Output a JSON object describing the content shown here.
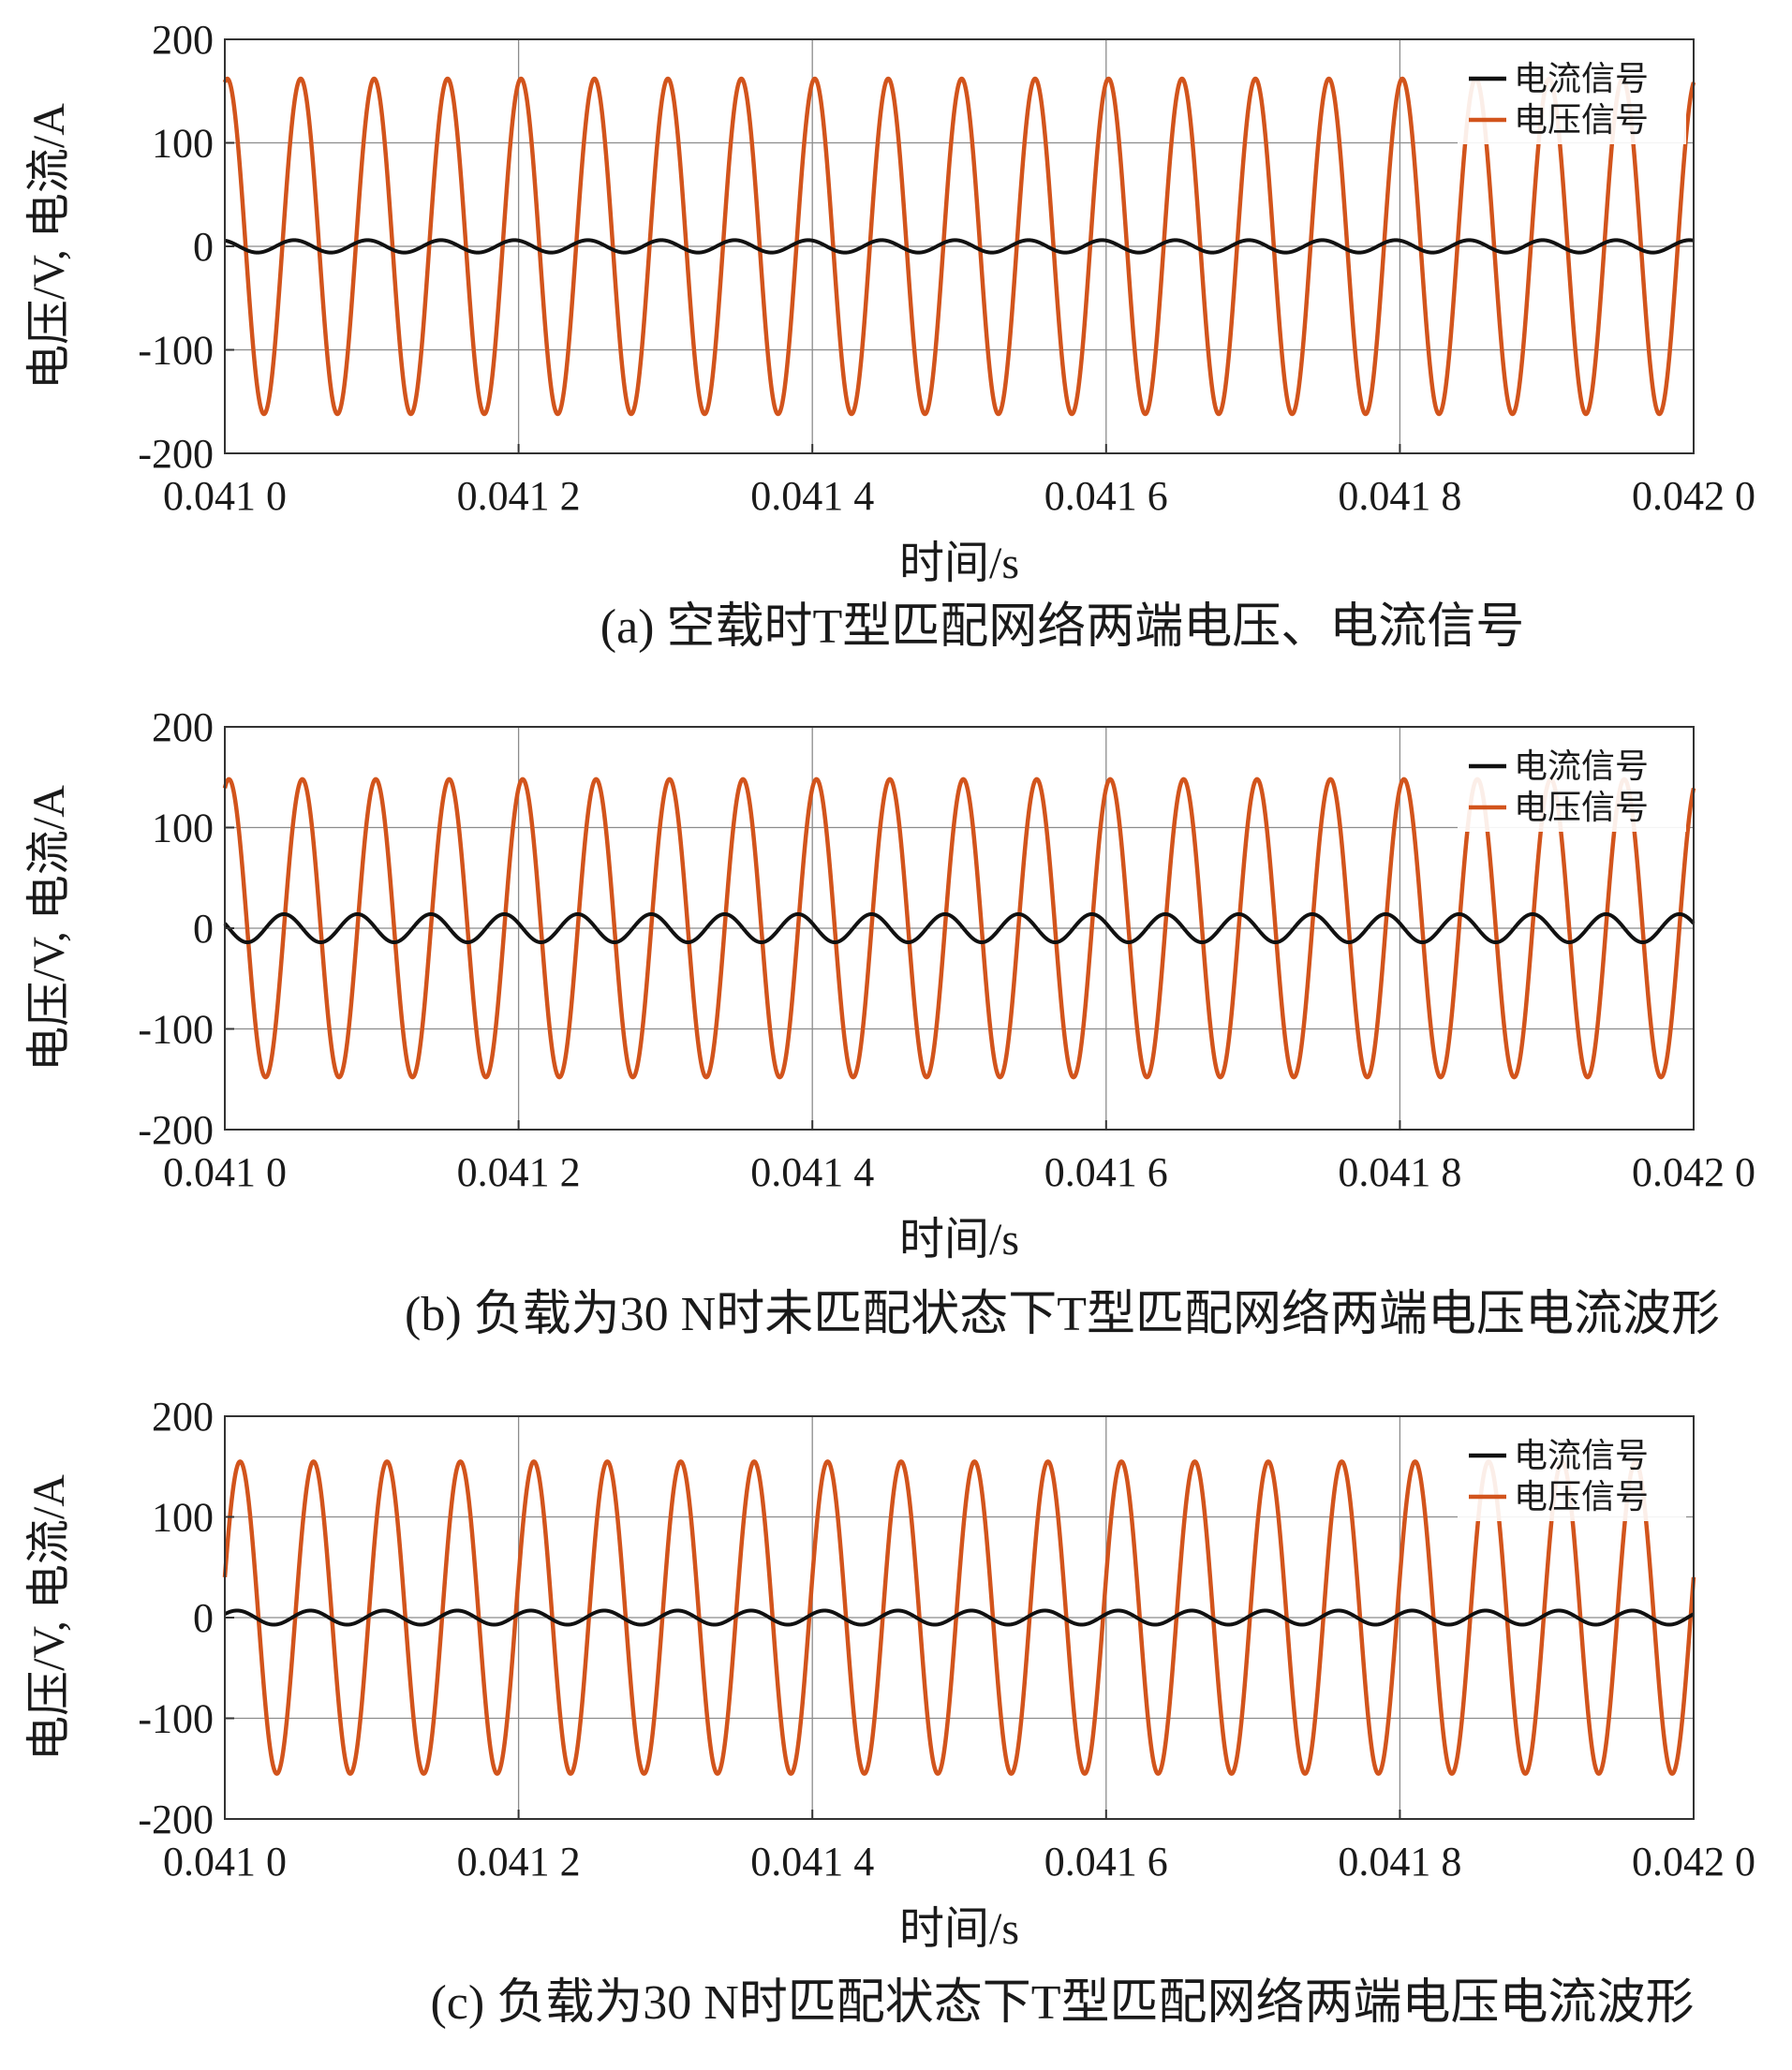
{
  "colors": {
    "current": "#111111",
    "voltage": "#d2541c",
    "grid": "#8c8c8c",
    "axes": "#333333",
    "background": "#ffffff"
  },
  "chart_data": [
    {
      "type": "line",
      "caption": "(a) 空载时T型匹配网络两端电压、电流信号",
      "xlabel": "时间/s",
      "ylabel": "电压/V, 电流/A",
      "xlim": [
        0.041,
        0.042
      ],
      "ylim": [
        -200,
        200
      ],
      "x_ticks": [
        0.041,
        0.0412,
        0.0414,
        0.0416,
        0.0418,
        0.042
      ],
      "x_tick_labels": [
        "0.041 0",
        "0.041 2",
        "0.041 4",
        "0.041 6",
        "0.041 8",
        "0.042 0"
      ],
      "y_ticks": [
        200,
        100,
        0,
        -100,
        -200
      ],
      "y_tick_labels": [
        "200",
        "100",
        "0",
        "-100",
        "-200"
      ],
      "grid": true,
      "legend_position": "top-right",
      "series": [
        {
          "name": "电流信号",
          "waveform": "sine",
          "amplitude": 6,
          "frequency_hz": 20000,
          "phase_deg": 110
        },
        {
          "name": "电压信号",
          "waveform": "sine",
          "amplitude": 162,
          "frequency_hz": 20000,
          "phase_deg": 78
        }
      ]
    },
    {
      "type": "line",
      "caption": "(b) 负载为30 N时未匹配状态下T型匹配网络两端电压电流波形",
      "xlabel": "时间/s",
      "ylabel": "电压/V, 电流/A",
      "xlim": [
        0.041,
        0.042
      ],
      "ylim": [
        -200,
        200
      ],
      "x_ticks": [
        0.041,
        0.0412,
        0.0414,
        0.0416,
        0.0418,
        0.042
      ],
      "x_tick_labels": [
        "0.041 0",
        "0.041 2",
        "0.041 4",
        "0.041 6",
        "0.041 8",
        "0.042 0"
      ],
      "y_ticks": [
        200,
        100,
        0,
        -100,
        -200
      ],
      "y_tick_labels": [
        "200",
        "100",
        "0",
        "-100",
        "-200"
      ],
      "grid": true,
      "legend_position": "top-right",
      "series": [
        {
          "name": "电流信号",
          "waveform": "sine",
          "amplitude": 14,
          "frequency_hz": 20000,
          "phase_deg": 160
        },
        {
          "name": "电压信号",
          "waveform": "sine",
          "amplitude": 148,
          "frequency_hz": 20000,
          "phase_deg": 70
        }
      ]
    },
    {
      "type": "line",
      "caption": "(c) 负载为30 N时匹配状态下T型匹配网络两端电压电流波形",
      "xlabel": "时间/s",
      "ylabel": "电压/V, 电流/A",
      "xlim": [
        0.041,
        0.042
      ],
      "ylim": [
        -200,
        200
      ],
      "x_ticks": [
        0.041,
        0.0412,
        0.0414,
        0.0416,
        0.0418,
        0.042
      ],
      "x_tick_labels": [
        "0.041 0",
        "0.041 2",
        "0.041 4",
        "0.041 6",
        "0.041 8",
        "0.042 0"
      ],
      "y_ticks": [
        200,
        100,
        0,
        -100,
        -200
      ],
      "y_tick_labels": [
        "200",
        "100",
        "0",
        "-100",
        "-200"
      ],
      "grid": true,
      "legend_position": "top-right",
      "series": [
        {
          "name": "电流信号",
          "waveform": "sine",
          "amplitude": 7,
          "frequency_hz": 20000,
          "phase_deg": 30
        },
        {
          "name": "电压信号",
          "waveform": "sine",
          "amplitude": 155,
          "frequency_hz": 20000,
          "phase_deg": 15
        }
      ]
    }
  ]
}
